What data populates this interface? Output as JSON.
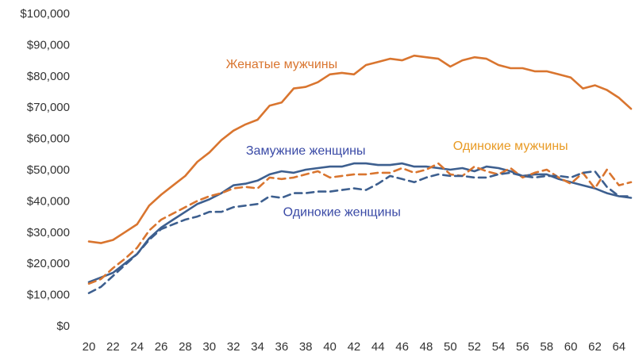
{
  "chart_data": {
    "type": "line",
    "title": "",
    "xlabel": "",
    "ylabel": "",
    "ylim": [
      0,
      100000
    ],
    "xlim": [
      20,
      65
    ],
    "grid": false,
    "y_ticks": [
      0,
      10000,
      20000,
      30000,
      40000,
      50000,
      60000,
      70000,
      80000,
      90000,
      100000
    ],
    "y_tick_labels": [
      "$0",
      "$10,000",
      "$20,000",
      "$30,000",
      "$40,000",
      "$50,000",
      "$60,000",
      "$70,000",
      "$80,000",
      "$90,000",
      "$100,000"
    ],
    "x_ticks": [
      20,
      22,
      24,
      26,
      28,
      30,
      32,
      34,
      36,
      38,
      40,
      42,
      44,
      46,
      48,
      50,
      52,
      54,
      56,
      58,
      60,
      62,
      64
    ],
    "x_tick_labels": [
      "20",
      "22",
      "24",
      "26",
      "28",
      "30",
      "32",
      "34",
      "36",
      "38",
      "40",
      "42",
      "44",
      "46",
      "48",
      "50",
      "52",
      "54",
      "56",
      "58",
      "60",
      "62",
      "64"
    ],
    "x": [
      20,
      21,
      22,
      23,
      24,
      25,
      26,
      27,
      28,
      29,
      30,
      31,
      32,
      33,
      34,
      35,
      36,
      37,
      38,
      39,
      40,
      41,
      42,
      43,
      44,
      45,
      46,
      47,
      48,
      49,
      50,
      51,
      52,
      53,
      54,
      55,
      56,
      57,
      58,
      59,
      60,
      61,
      62,
      63,
      64,
      65
    ],
    "series": [
      {
        "name": "Женатые мужчины",
        "color": "#d9752f",
        "dash": false,
        "values": [
          27000,
          26500,
          27500,
          30000,
          32500,
          38500,
          42000,
          45000,
          48000,
          52500,
          55500,
          59500,
          62500,
          64500,
          66000,
          70500,
          71500,
          76000,
          76500,
          78000,
          80500,
          81000,
          80500,
          83500,
          84500,
          85500,
          85000,
          86500,
          86000,
          85500,
          83000,
          85000,
          86000,
          85500,
          83500,
          82500,
          82500,
          81500,
          81500,
          80500,
          79500,
          76000,
          77000,
          75500,
          73000,
          69500
        ]
      },
      {
        "name": "Замужние женщины",
        "color": "#3d5f8f",
        "dash": false,
        "values": [
          14000,
          15500,
          17000,
          20000,
          23000,
          28000,
          31500,
          34000,
          36500,
          39000,
          40500,
          42500,
          45000,
          45500,
          46500,
          48500,
          49500,
          49000,
          50000,
          50500,
          51000,
          51000,
          52000,
          52000,
          51500,
          51500,
          52000,
          51000,
          51000,
          50500,
          50000,
          50500,
          49500,
          51000,
          50500,
          49500,
          48000,
          48500,
          48500,
          47000,
          46000,
          45000,
          44000,
          42500,
          41500,
          41000
        ]
      },
      {
        "name": "Одинокие мужчины",
        "color": "#d9752f",
        "dash": true,
        "values": [
          13500,
          15000,
          18500,
          21500,
          25000,
          30500,
          34000,
          36000,
          38000,
          40000,
          41500,
          42500,
          44000,
          44500,
          44000,
          47500,
          47000,
          47500,
          48500,
          49500,
          47500,
          48000,
          48500,
          48500,
          49000,
          49000,
          50500,
          49000,
          50000,
          52000,
          48500,
          48000,
          51000,
          49500,
          48500,
          50500,
          47500,
          49000,
          50000,
          47500,
          45500,
          49000,
          44000,
          50000,
          45000,
          46000
        ]
      },
      {
        "name": "Одинокие женщины",
        "color": "#3d5f8f",
        "dash": true,
        "values": [
          10500,
          12500,
          16000,
          19500,
          23000,
          27500,
          31000,
          32500,
          34000,
          35000,
          36500,
          36500,
          38000,
          38500,
          39000,
          41500,
          41000,
          42500,
          42500,
          43000,
          43000,
          43500,
          44000,
          43500,
          45500,
          48000,
          47000,
          46000,
          47500,
          48500,
          48000,
          48000,
          47500,
          47500,
          48500,
          49000,
          48000,
          47500,
          48000,
          48000,
          47500,
          49000,
          49500,
          44500,
          41500,
          41500
        ]
      }
    ],
    "annotations": [
      {
        "text": "Женатые мужчины",
        "color": "#d9752f",
        "x": 36,
        "y": 82500
      },
      {
        "text": "Замужние женщины",
        "color": "#3a4aa6",
        "x": 38,
        "y": 54800
      },
      {
        "text": "Одинокие мужчины",
        "color": "#e89a24",
        "x": 55,
        "y": 56300
      },
      {
        "text": "Одинокие женщины",
        "color": "#3a4aa6",
        "x": 41,
        "y": 35200
      }
    ]
  }
}
